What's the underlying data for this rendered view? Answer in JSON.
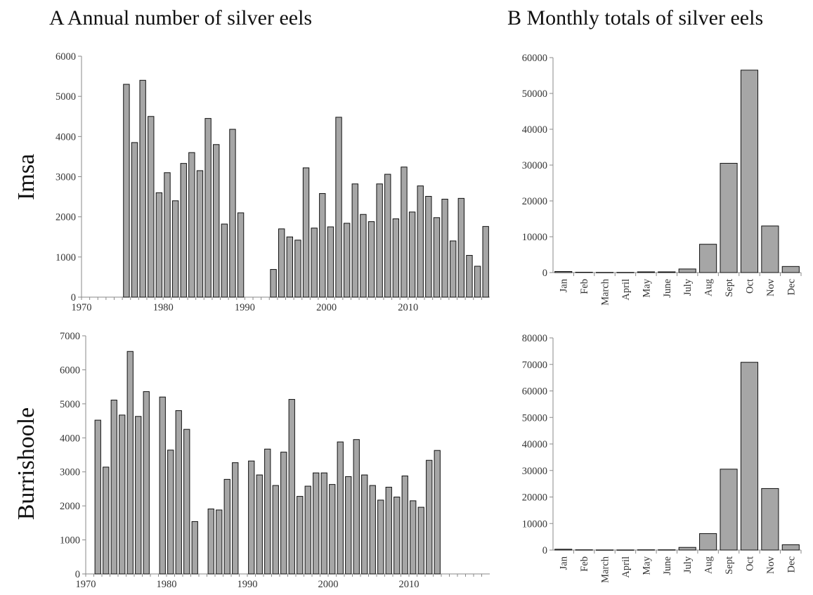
{
  "panel_a_heading": "A  Annual number of silver eels",
  "panel_b_heading": "B  Monthly totals of silver eels",
  "row_labels": [
    "Imsa",
    "Burrishoole"
  ],
  "chart_data": [
    {
      "id": "imsa-annual",
      "type": "bar",
      "title": "",
      "xlabel": "",
      "ylabel": "",
      "x": [
        1975,
        1976,
        1977,
        1978,
        1979,
        1980,
        1981,
        1982,
        1983,
        1984,
        1985,
        1986,
        1987,
        1988,
        1989,
        1993,
        1994,
        1995,
        1996,
        1997,
        1998,
        1999,
        2000,
        2001,
        2002,
        2003,
        2004,
        2005,
        2006,
        2007,
        2008,
        2009,
        2010,
        2011,
        2012,
        2013,
        2014,
        2015,
        2016,
        2017,
        2018,
        2019
      ],
      "values": [
        5300,
        3850,
        5400,
        4500,
        2600,
        3100,
        2400,
        3330,
        3600,
        3150,
        4450,
        3800,
        1820,
        4180,
        2100,
        690,
        1700,
        1500,
        1420,
        3220,
        1720,
        2580,
        1750,
        4480,
        1840,
        2820,
        2060,
        1880,
        2820,
        3060,
        1950,
        3240,
        2120,
        2770,
        2510,
        1980,
        2440,
        1400,
        2460,
        1040,
        770,
        1760
      ],
      "xticks": [
        1970,
        1980,
        1990,
        2000,
        2010
      ],
      "yticks": [
        0,
        1000,
        2000,
        3000,
        4000,
        5000,
        6000
      ],
      "xlim": [
        1969.5,
        2019.5
      ],
      "ylim": [
        0,
        6000
      ]
    },
    {
      "id": "imsa-monthly",
      "type": "bar",
      "title": "",
      "xlabel": "",
      "ylabel": "",
      "categories": [
        "Jan",
        "Feb",
        "March",
        "April",
        "May",
        "June",
        "July",
        "Aug",
        "Sept",
        "Oct",
        "Nov",
        "Dec"
      ],
      "values": [
        300,
        100,
        50,
        50,
        200,
        200,
        1000,
        7900,
        30500,
        56500,
        13000,
        1700
      ],
      "yticks": [
        0,
        10000,
        20000,
        30000,
        40000,
        50000,
        60000
      ],
      "ylim": [
        0,
        60000
      ]
    },
    {
      "id": "burrishoole-annual",
      "type": "bar",
      "title": "",
      "xlabel": "",
      "ylabel": "",
      "x": [
        1971,
        1972,
        1973,
        1974,
        1975,
        1976,
        1977,
        1979,
        1980,
        1981,
        1982,
        1983,
        1985,
        1986,
        1987,
        1988,
        1990,
        1991,
        1992,
        1993,
        1994,
        1995,
        1996,
        1997,
        1998,
        1999,
        2000,
        2001,
        2002,
        2003,
        2004,
        2005,
        2006,
        2007,
        2008,
        2009,
        2010,
        2011,
        2012,
        2013
      ],
      "values": [
        4520,
        3140,
        5110,
        4670,
        6540,
        4630,
        5360,
        5200,
        3640,
        4800,
        4250,
        1540,
        1910,
        1880,
        2780,
        3270,
        3320,
        2910,
        3670,
        2600,
        3580,
        5130,
        2280,
        2580,
        2970,
        2970,
        2630,
        3880,
        2860,
        3950,
        2910,
        2600,
        2170,
        2550,
        2260,
        2880,
        2150,
        1960,
        3340,
        3630
      ],
      "xticks": [
        1970,
        1980,
        1990,
        2000,
        2010
      ],
      "yticks": [
        0,
        1000,
        2000,
        3000,
        4000,
        5000,
        6000,
        7000
      ],
      "xlim": [
        1969.5,
        2019.5
      ],
      "ylim": [
        0,
        7000
      ]
    },
    {
      "id": "burrishoole-monthly",
      "type": "bar",
      "title": "",
      "xlabel": "",
      "ylabel": "",
      "categories": [
        "Jan",
        "Feb",
        "March",
        "April",
        "May",
        "June",
        "July",
        "Aug",
        "Sept",
        "Oct",
        "Nov",
        "Dec"
      ],
      "values": [
        300,
        100,
        50,
        50,
        100,
        100,
        1000,
        6200,
        30500,
        70800,
        23200,
        2000
      ],
      "yticks": [
        0,
        10000,
        20000,
        30000,
        40000,
        50000,
        60000,
        70000,
        80000
      ],
      "ylim": [
        0,
        80000
      ]
    }
  ]
}
